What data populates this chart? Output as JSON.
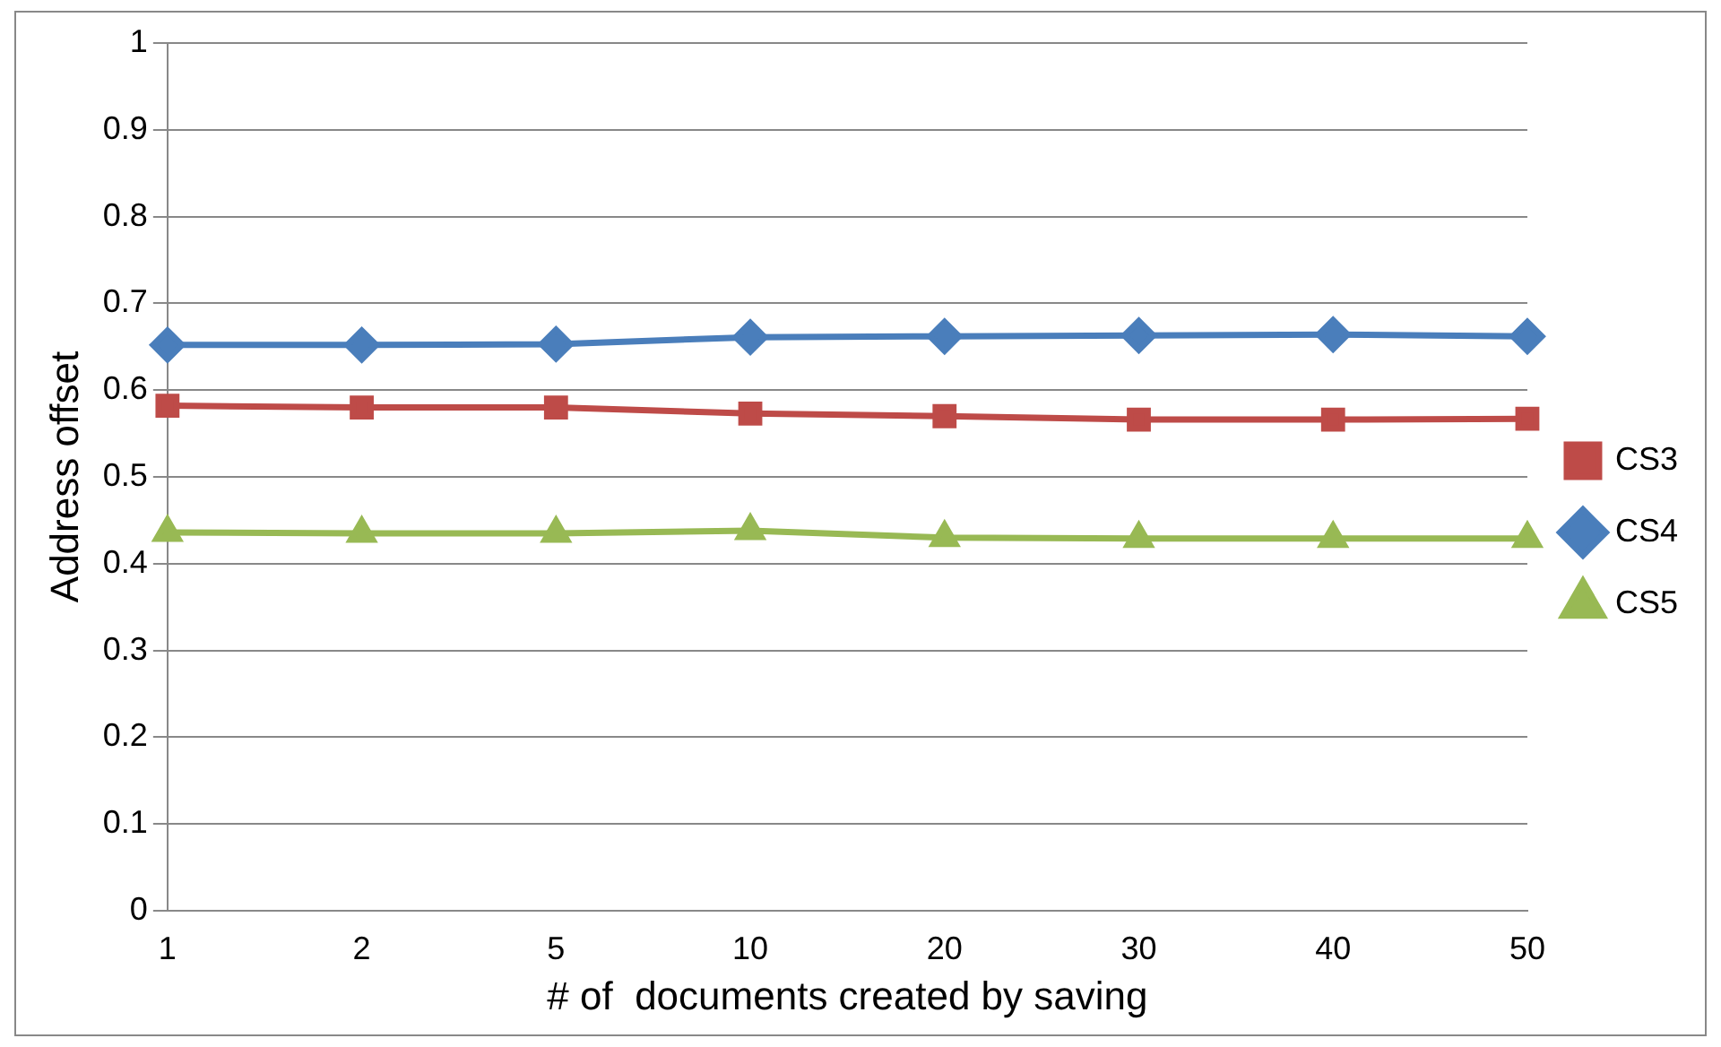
{
  "chart_data": {
    "type": "line",
    "xlabel": "# of  documents created by saving",
    "ylabel": "Address offset",
    "categories": [
      "1",
      "2",
      "5",
      "10",
      "20",
      "30",
      "40",
      "50"
    ],
    "series": [
      {
        "name": "CS3",
        "color": "#be4b48",
        "marker": "square",
        "values": [
          0.582,
          0.58,
          0.58,
          0.573,
          0.57,
          0.566,
          0.566,
          0.567
        ]
      },
      {
        "name": "CS4",
        "color": "#4a7ebb",
        "marker": "diamond",
        "values": [
          0.652,
          0.652,
          0.653,
          0.661,
          0.662,
          0.663,
          0.664,
          0.662
        ]
      },
      {
        "name": "CS5",
        "color": "#98b954",
        "marker": "triangle",
        "values": [
          0.436,
          0.435,
          0.435,
          0.438,
          0.43,
          0.429,
          0.429,
          0.429
        ]
      }
    ],
    "ylim": [
      0,
      1
    ],
    "yticks": [
      0,
      0.1,
      0.2,
      0.3,
      0.4,
      0.5,
      0.6,
      0.7,
      0.8,
      0.9,
      1
    ],
    "grid": "y",
    "legend": "right",
    "line_style": "solid"
  }
}
